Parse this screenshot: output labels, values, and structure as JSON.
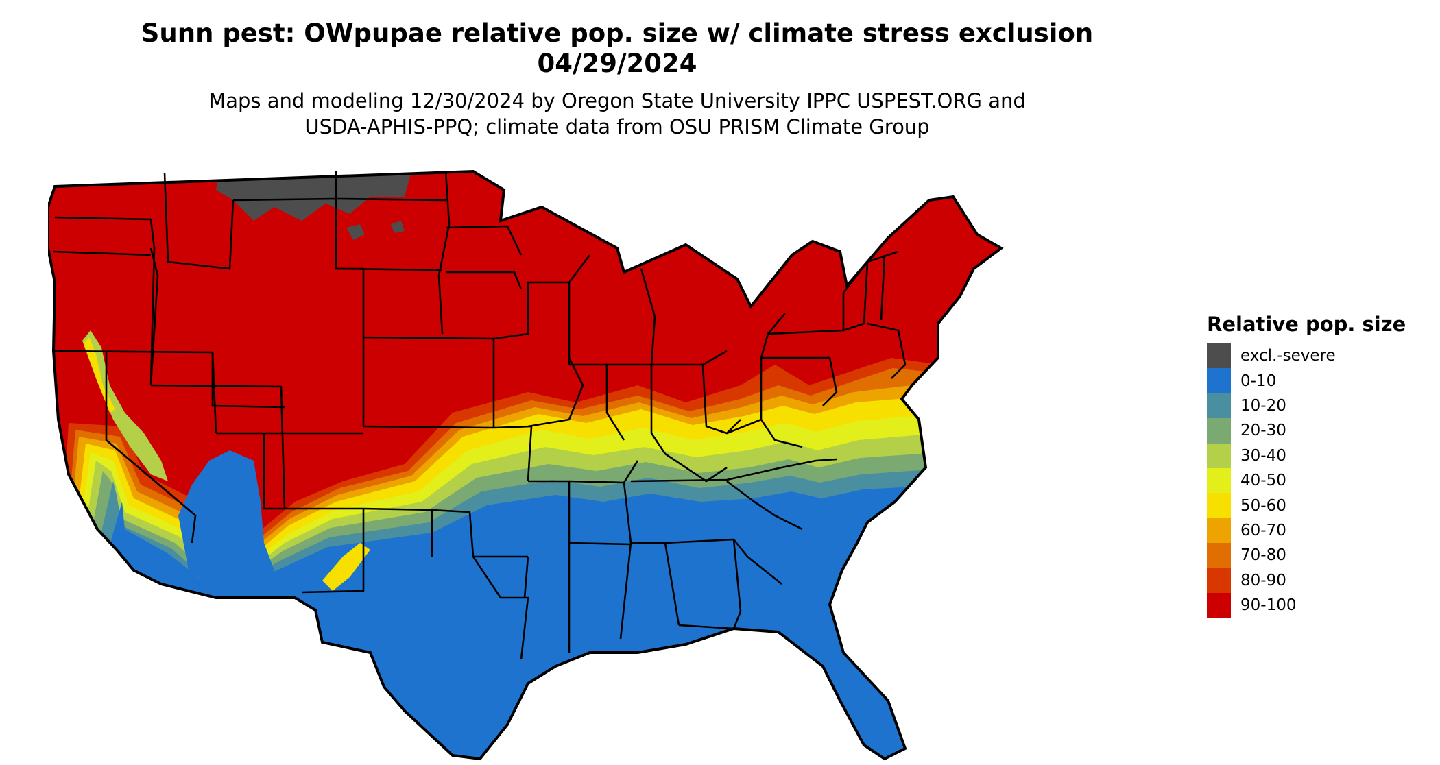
{
  "header": {
    "title_line1": "Sunn pest: OWpupae relative pop. size w/ climate stress exclusion",
    "title_line2": "04/29/2024",
    "subtitle_line1": "Maps and modeling 12/30/2024 by Oregon State University IPPC USPEST.ORG and",
    "subtitle_line2": "USDA-APHIS-PPQ; climate data from OSU PRISM Climate Group"
  },
  "legend": {
    "title": "Relative pop. size",
    "items": [
      {
        "label": "excl.-severe",
        "color": "#4d4d4d"
      },
      {
        "label": "0-10",
        "color": "#1e73cf"
      },
      {
        "label": "10-20",
        "color": "#4a8fa0"
      },
      {
        "label": "20-30",
        "color": "#7aaa72"
      },
      {
        "label": "30-40",
        "color": "#b3d048"
      },
      {
        "label": "40-50",
        "color": "#e3ef1a"
      },
      {
        "label": "50-60",
        "color": "#f7e000"
      },
      {
        "label": "60-70",
        "color": "#eda400"
      },
      {
        "label": "70-80",
        "color": "#e06e00"
      },
      {
        "label": "80-90",
        "color": "#d83800"
      },
      {
        "label": "90-100",
        "color": "#cc0000"
      }
    ]
  }
}
